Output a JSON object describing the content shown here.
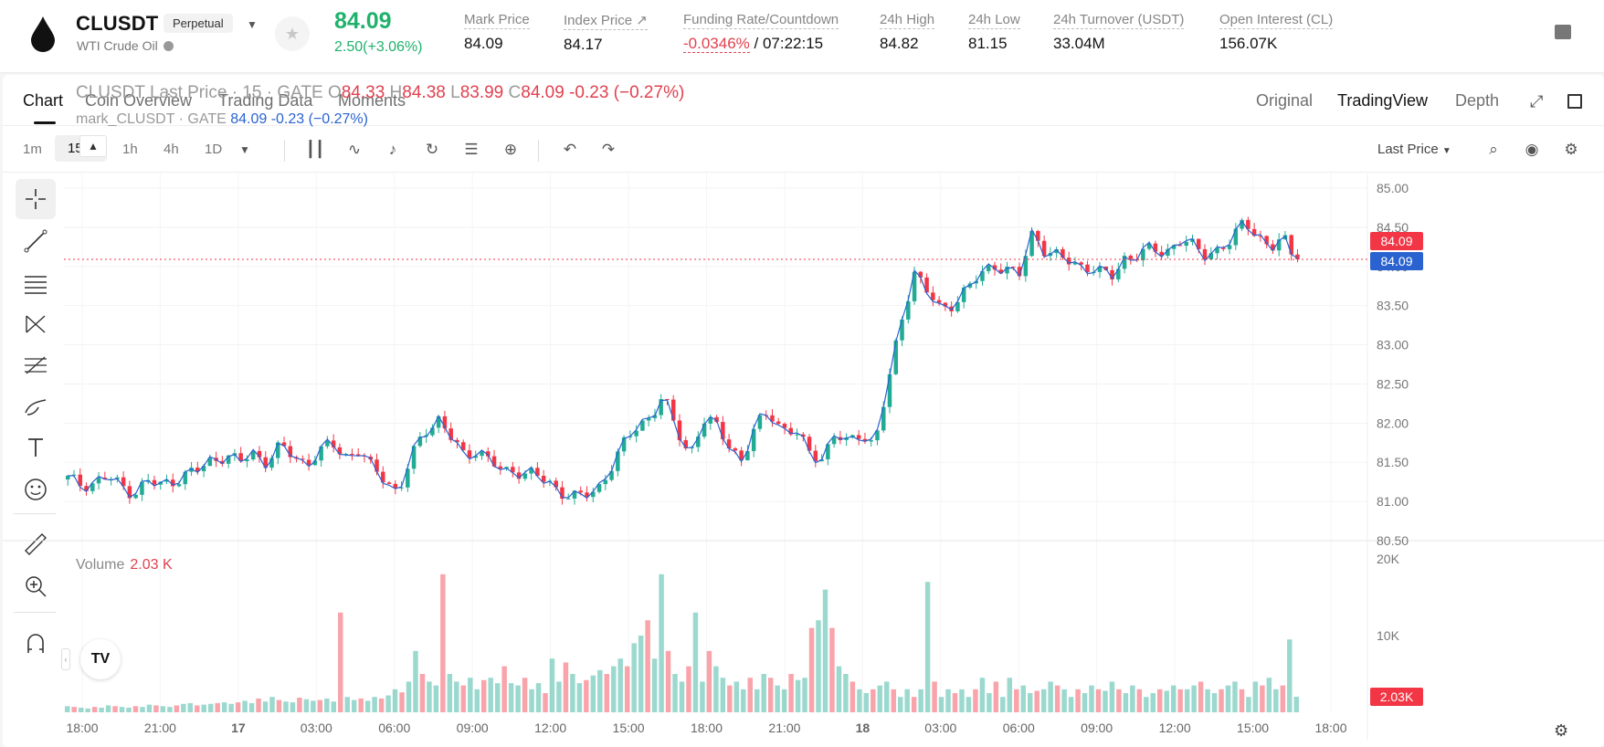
{
  "header": {
    "symbol": "CLUSDT",
    "badge": "Perpetual",
    "name": "WTI Crude Oil",
    "last_price": "84.09",
    "change": "2.50(+3.06%)",
    "stats": [
      {
        "label": "Mark Price",
        "value": "84.09"
      },
      {
        "label": "Index Price ↗",
        "value": "84.17"
      },
      {
        "label": "Funding Rate/Countdown",
        "value_rate": "-0.0346%",
        "value_countdown": "/ 07:22:15"
      },
      {
        "label": "24h High",
        "value": "84.82"
      },
      {
        "label": "24h Low",
        "value": "81.15"
      },
      {
        "label": "24h Turnover (USDT)",
        "value": "33.04M"
      },
      {
        "label": "Open Interest (CL)",
        "value": "156.07K"
      }
    ]
  },
  "tabs": [
    "Chart",
    "Coin Overview",
    "Trading Data",
    "Moments"
  ],
  "view_tabs": [
    "Original",
    "TradingView",
    "Depth"
  ],
  "toolbar": {
    "timeframes": [
      "1m",
      "15m",
      "1h",
      "4h",
      "1D"
    ],
    "active_timeframe": "15m",
    "price_type": "Last Price"
  },
  "legend": {
    "main_title": "CLUSDT Last Price · 15 · GATE",
    "o_label": "O",
    "o": "84.33",
    "h_label": "H",
    "h": "84.38",
    "l_label": "L",
    "l": "83.99",
    "c_label": "C",
    "c": "84.09",
    "chg": "-0.23 (−0.27%)",
    "mark_title": "mark_CLUSDT · GATE",
    "mark_value": "84.09 -0.23 (−0.27%)"
  },
  "volume": {
    "label": "Volume",
    "value": "2.03 K",
    "scale_label": "2.03K"
  },
  "colors": {
    "up": "#22ab94",
    "down": "#f23645",
    "mark_line": "#2a63d0",
    "price_tag_last": "#f23645",
    "price_tag_mark": "#2a63d0"
  },
  "chart_data": {
    "type": "candlestick",
    "title": "CLUSDT Last Price · 15 · GATE",
    "x_ticks": [
      "18:00",
      "21:00",
      "17",
      "03:00",
      "06:00",
      "09:00",
      "12:00",
      "15:00",
      "18:00",
      "21:00",
      "18",
      "03:00",
      "06:00",
      "09:00",
      "12:00",
      "15:00",
      "18:00"
    ],
    "y_ticks": [
      "85.00",
      "84.50",
      "84.00",
      "83.50",
      "83.00",
      "82.50",
      "82.00",
      "81.50",
      "81.00",
      "80.50"
    ],
    "y_range": [
      80.5,
      85.0
    ],
    "volume_ticks": [
      "20K",
      "10K"
    ],
    "volume_range": [
      0,
      20000
    ],
    "last_price": 84.09,
    "last_price_label": "84.09",
    "mark_price_label": "84.09",
    "close_path": [
      81.28,
      81.22,
      81.25,
      81.3,
      81.2,
      81.12,
      81.25,
      81.2,
      81.28,
      81.35,
      81.4,
      81.55,
      81.6,
      81.48,
      81.62,
      81.52,
      81.68,
      81.58,
      81.5,
      81.62,
      81.72,
      81.6,
      81.65,
      81.4,
      81.3,
      81.12,
      81.55,
      81.9,
      82.08,
      81.8,
      81.55,
      81.7,
      81.5,
      81.35,
      81.4,
      81.38,
      81.25,
      81.15,
      81.1,
      81.05,
      81.12,
      81.45,
      81.72,
      81.92,
      82.1,
      82.35,
      81.9,
      81.6,
      82.05,
      81.95,
      81.72,
      81.55,
      81.92,
      82.15,
      81.95,
      81.88,
      81.62,
      81.58,
      81.85,
      81.72,
      81.9,
      81.72,
      82.45,
      83.3,
      83.95,
      83.65,
      83.45,
      83.55,
      83.7,
      83.88,
      84.05,
      83.95,
      83.88,
      84.48,
      84.18,
      84.1,
      84.05,
      84.02,
      83.9,
      83.88,
      84.15,
      84.12,
      84.22,
      84.2,
      84.32,
      84.25,
      84.18,
      84.22,
      84.28,
      84.62,
      84.4,
      84.2,
      84.35,
      84.09
    ],
    "volume_values": [
      800,
      700,
      600,
      500,
      700,
      600,
      900,
      800,
      700,
      600,
      800,
      700,
      1000,
      900,
      800,
      700,
      900,
      1100,
      1200,
      900,
      1000,
      1100,
      1200,
      1300,
      1100,
      1300,
      1500,
      1200,
      1800,
      1400,
      2000,
      1600,
      1400,
      1300,
      1900,
      1700,
      1500,
      1600,
      1800,
      1400,
      13000,
      2000,
      1600,
      1800,
      1500,
      2000,
      1800,
      2200,
      3000,
      2600,
      4000,
      8000,
      5000,
      4000,
      3500,
      18000,
      5000,
      4000,
      3500,
      4500,
      3000,
      4200,
      4500,
      3800,
      6000,
      3800,
      3500,
      4500,
      3000,
      3800,
      2500,
      7000,
      4000,
      6500,
      5000,
      3800,
      4200,
      4800,
      5500,
      5000,
      6000,
      7000,
      6000,
      9000,
      10000,
      12000,
      7000,
      18000,
      8000,
      5000,
      4000,
      6000,
      13000,
      4000,
      8000,
      6000,
      4500,
      3500,
      4000,
      3000,
      4500,
      3000,
      5000,
      4500,
      3500,
      3000,
      5000,
      4200,
      4500,
      11000,
      12000,
      16000,
      11000,
      6000,
      5000,
      4000,
      3000,
      2500,
      3000,
      3500,
      4000,
      3000,
      2000,
      3000,
      2000,
      3000,
      17000,
      4000,
      2000,
      3000,
      2500,
      3000,
      2000,
      3000,
      4500,
      2500,
      4000,
      2000,
      4500,
      3000,
      3500,
      2500,
      2800,
      3000,
      4000,
      3500,
      3000,
      2000,
      3000,
      2500,
      3500,
      3000,
      2800,
      4000,
      3000,
      2500,
      3500,
      3000,
      2000,
      2500,
      3000,
      2800,
      3500,
      3000,
      3000,
      3500,
      4000,
      3000,
      2500,
      3000,
      3500,
      4000,
      3000,
      2000,
      4000,
      3500,
      4500,
      3000,
      3500,
      9500,
      2030
    ]
  }
}
